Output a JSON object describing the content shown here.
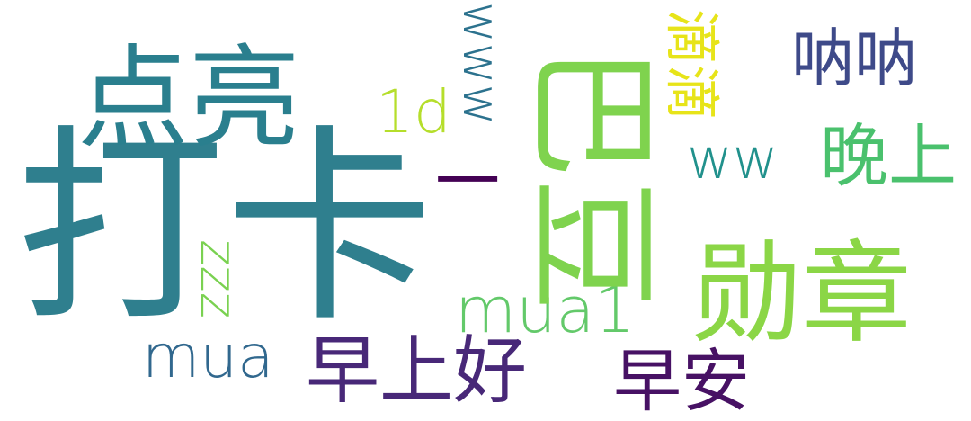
{
  "words": {
    "daka": {
      "text": "打卡",
      "color": "#2f7f8e"
    },
    "bawang": {
      "text": "巴豆",
      "color": "#7fd34e"
    },
    "xunzhang": {
      "text": "勋章",
      "color": "#8bd646"
    },
    "dianliang": {
      "text": "点亮",
      "color": "#2a7f8e"
    },
    "mua1": {
      "text": "mua1",
      "color": "#63c96a"
    },
    "mua": {
      "text": "mua",
      "color": "#31688e"
    },
    "zaoshanghao": {
      "text": "早上好",
      "color": "#482878"
    },
    "zaoan": {
      "text": "早安",
      "color": "#471164"
    },
    "nana": {
      "text": "呐呐",
      "color": "#3e4a89"
    },
    "wanshang": {
      "text": "晚上",
      "color": "#4ac16d"
    },
    "ww": {
      "text": "ww",
      "color": "#21918c"
    },
    "1d": {
      "text": "1d",
      "color": "#b5de2b"
    },
    "yi": {
      "text": "一",
      "color": "#440154"
    },
    "www": {
      "text": "www",
      "color": "#2c728e"
    },
    "didi": {
      "text": "滴滴",
      "color": "#e7e419"
    },
    "zzz": {
      "text": "zzz",
      "color": "#7ad151"
    }
  }
}
